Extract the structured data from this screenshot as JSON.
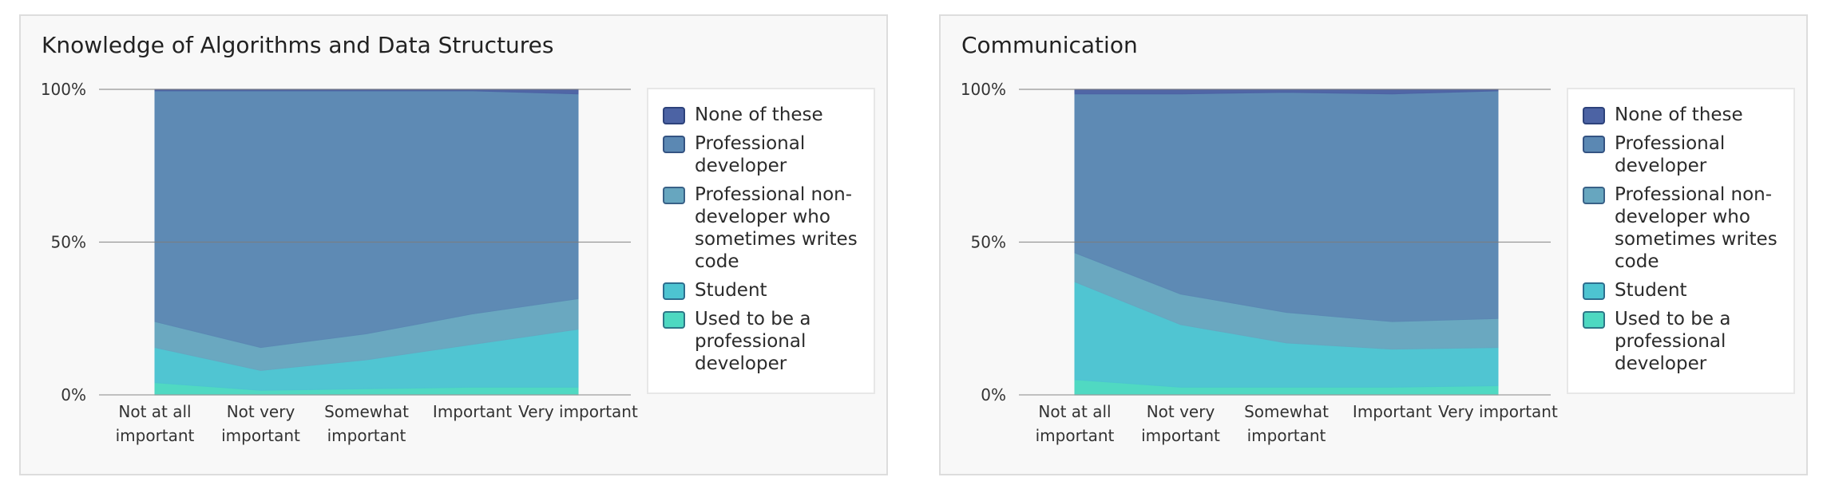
{
  "colors": {
    "none_of_these": "#4c63a4",
    "professional_developer": "#5b88b3",
    "professional_non_developer": "#67a6bf",
    "student": "#4dc4d1",
    "used_to_be": "#4dd8c1"
  },
  "chart_data": [
    {
      "type": "area",
      "stacked_percent": true,
      "title": "Knowledge of Algorithms and Data Structures",
      "categories": [
        [
          "Not at all",
          "important"
        ],
        [
          "Not very",
          "important"
        ],
        [
          "Somewhat",
          "important"
        ],
        [
          "Important"
        ],
        [
          "Very important"
        ]
      ],
      "yticks": [
        "0%",
        "50%",
        "100%"
      ],
      "ylim": [
        0,
        100
      ],
      "grid": true,
      "legend_position": "right",
      "series": [
        {
          "name": "Used to be a professional developer",
          "color_key": "used_to_be",
          "values": [
            4,
            1.5,
            2,
            2.5,
            2.5
          ]
        },
        {
          "name": "Student",
          "color_key": "student",
          "values": [
            11.5,
            6.5,
            9.5,
            14,
            19
          ]
        },
        {
          "name": "Professional non-developer who sometimes writes code",
          "color_key": "professional_non_developer",
          "values": [
            8.5,
            7.5,
            8.5,
            10,
            10
          ]
        },
        {
          "name": "Professional developer",
          "color_key": "professional_developer",
          "values": [
            75.5,
            84,
            79.5,
            73,
            67
          ]
        },
        {
          "name": "None of these",
          "color_key": "none_of_these",
          "values": [
            0.5,
            0.5,
            0.5,
            0.5,
            1.5
          ]
        }
      ]
    },
    {
      "type": "area",
      "stacked_percent": true,
      "title": "Communication",
      "categories": [
        [
          "Not at all",
          "important"
        ],
        [
          "Not very",
          "important"
        ],
        [
          "Somewhat",
          "important"
        ],
        [
          "Important"
        ],
        [
          "Very important"
        ]
      ],
      "yticks": [
        "0%",
        "50%",
        "100%"
      ],
      "ylim": [
        0,
        100
      ],
      "grid": true,
      "legend_position": "right",
      "series": [
        {
          "name": "Used to be a professional developer",
          "color_key": "used_to_be",
          "values": [
            5,
            2.5,
            2.5,
            2.5,
            3
          ]
        },
        {
          "name": "Student",
          "color_key": "student",
          "values": [
            32,
            20.5,
            14.5,
            12.5,
            12.5
          ]
        },
        {
          "name": "Professional non-developer who sometimes writes code",
          "color_key": "professional_non_developer",
          "values": [
            9.5,
            10,
            10,
            9,
            9.5
          ]
        },
        {
          "name": "Professional developer",
          "color_key": "professional_developer",
          "values": [
            52,
            65.5,
            72,
            74.5,
            74.5
          ]
        },
        {
          "name": "None of these",
          "color_key": "none_of_these",
          "values": [
            1.5,
            1.5,
            1,
            1.5,
            0.5
          ]
        }
      ]
    }
  ],
  "legend": [
    {
      "label_lines": [
        "None of these"
      ],
      "color_key": "none_of_these"
    },
    {
      "label_lines": [
        "Professional",
        "developer"
      ],
      "color_key": "professional_developer"
    },
    {
      "label_lines": [
        "Professional non-",
        "developer who",
        "sometimes writes",
        "code"
      ],
      "color_key": "professional_non_developer"
    },
    {
      "label_lines": [
        "Student"
      ],
      "color_key": "student"
    },
    {
      "label_lines": [
        "Used to be a",
        "professional",
        "developer"
      ],
      "color_key": "used_to_be"
    }
  ]
}
